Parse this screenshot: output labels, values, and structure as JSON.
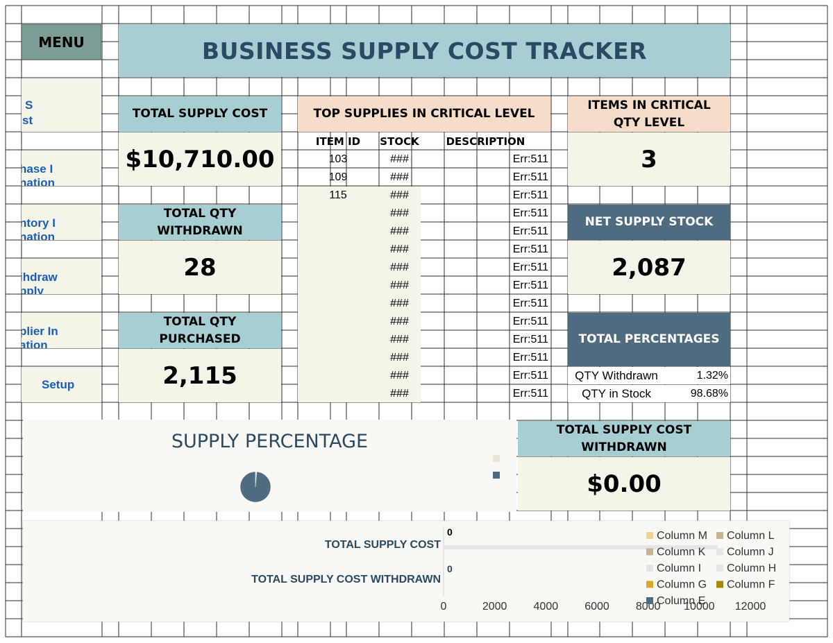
{
  "menu": {
    "label": "MENU"
  },
  "title": "BUSINESS SUPPLY COST TRACKER",
  "sidebar": {
    "items": [
      {
        "lines": [
          "S",
          "st"
        ]
      },
      {
        "lines": [
          "hase I",
          "nation"
        ]
      },
      {
        "lines": [
          "ntory I",
          "nation"
        ]
      },
      {
        "lines": [
          "ihdraw",
          "pply"
        ]
      },
      {
        "lines": [
          "plier In",
          "ation"
        ]
      },
      {
        "lines": [
          "Setup"
        ]
      }
    ]
  },
  "cards": {
    "total_supply_cost": {
      "label": "TOTAL SUPPLY COST",
      "value": "$10,710.00"
    },
    "total_qty_withdrawn": {
      "label_line1": "TOTAL QTY",
      "label_line2": "WITHDRAWN",
      "value": "28"
    },
    "total_qty_purchased": {
      "label_line1": "TOTAL QTY",
      "label_line2": "PURCHASED",
      "value": "2,115"
    },
    "items_critical": {
      "label_line1": "ITEMS IN CRITICAL",
      "label_line2": "QTY LEVEL",
      "value": "3"
    },
    "net_supply_stock": {
      "label": "NET SUPPLY STOCK",
      "value": "2,087"
    },
    "total_cost_withdrawn": {
      "label_line1": "TOTAL SUPPLY COST",
      "label_line2": "WITHDRAWN",
      "value": "$0.00"
    }
  },
  "critical_table": {
    "title": "TOP SUPPLIES IN CRITICAL LEVEL",
    "columns": [
      "ITEM ID",
      "STOCK",
      "DESCRIPTION"
    ],
    "rows": [
      {
        "id": "103",
        "stock": "###",
        "desc": "Err:511"
      },
      {
        "id": "109",
        "stock": "###",
        "desc": "Err:511"
      },
      {
        "id": "115",
        "stock": "###",
        "desc": "Err:511"
      },
      {
        "id": "",
        "stock": "###",
        "desc": "Err:511"
      },
      {
        "id": "",
        "stock": "###",
        "desc": "Err:511"
      },
      {
        "id": "",
        "stock": "###",
        "desc": "Err:511"
      },
      {
        "id": "",
        "stock": "###",
        "desc": "Err:511"
      },
      {
        "id": "",
        "stock": "###",
        "desc": "Err:511"
      },
      {
        "id": "",
        "stock": "###",
        "desc": "Err:511"
      },
      {
        "id": "",
        "stock": "###",
        "desc": "Err:511"
      },
      {
        "id": "",
        "stock": "###",
        "desc": "Err:511"
      },
      {
        "id": "",
        "stock": "###",
        "desc": "Err:511"
      },
      {
        "id": "",
        "stock": "###",
        "desc": "Err:511"
      },
      {
        "id": "",
        "stock": "###",
        "desc": "Err:511"
      }
    ]
  },
  "percentages": {
    "label": "TOTAL PERCENTAGES",
    "rows": [
      {
        "label": "QTY Withdrawn",
        "value": "1.32%"
      },
      {
        "label": "QTY in Stock",
        "value": "98.68%"
      }
    ]
  },
  "pie_chart": {
    "title": "SUPPLY PERCENTAGE",
    "slices": [
      {
        "value": 1.32,
        "color": "#eae3d6"
      },
      {
        "value": 98.68,
        "color": "#4f6b80"
      }
    ]
  },
  "chart_data": {
    "type": "bar",
    "categories": [
      "TOTAL SUPPLY COST",
      "TOTAL SUPPLY COST WITHDRAWN"
    ],
    "data_labels": [
      "0",
      "0"
    ],
    "x_ticks": [
      "0",
      "2000",
      "4000",
      "6000",
      "8000",
      "10000",
      "12000"
    ],
    "xlim": [
      0,
      12000
    ],
    "legend": [
      {
        "name": "Column M",
        "color": "#f2d08f"
      },
      {
        "name": "Column L",
        "color": "#c9b38f"
      },
      {
        "name": "Column K",
        "color": "#c9b38f"
      },
      {
        "name": "Column J",
        "color": "#e5e5e5"
      },
      {
        "name": "Column I",
        "color": "#e5e5e5"
      },
      {
        "name": "Column H",
        "color": "#e5e5e5"
      },
      {
        "name": "Column G",
        "color": "#d9a82a"
      },
      {
        "name": "Column F",
        "color": "#a8860a"
      },
      {
        "name": "Column E",
        "color": "#4f6b80"
      }
    ],
    "legend_position": "right",
    "grid": false
  }
}
